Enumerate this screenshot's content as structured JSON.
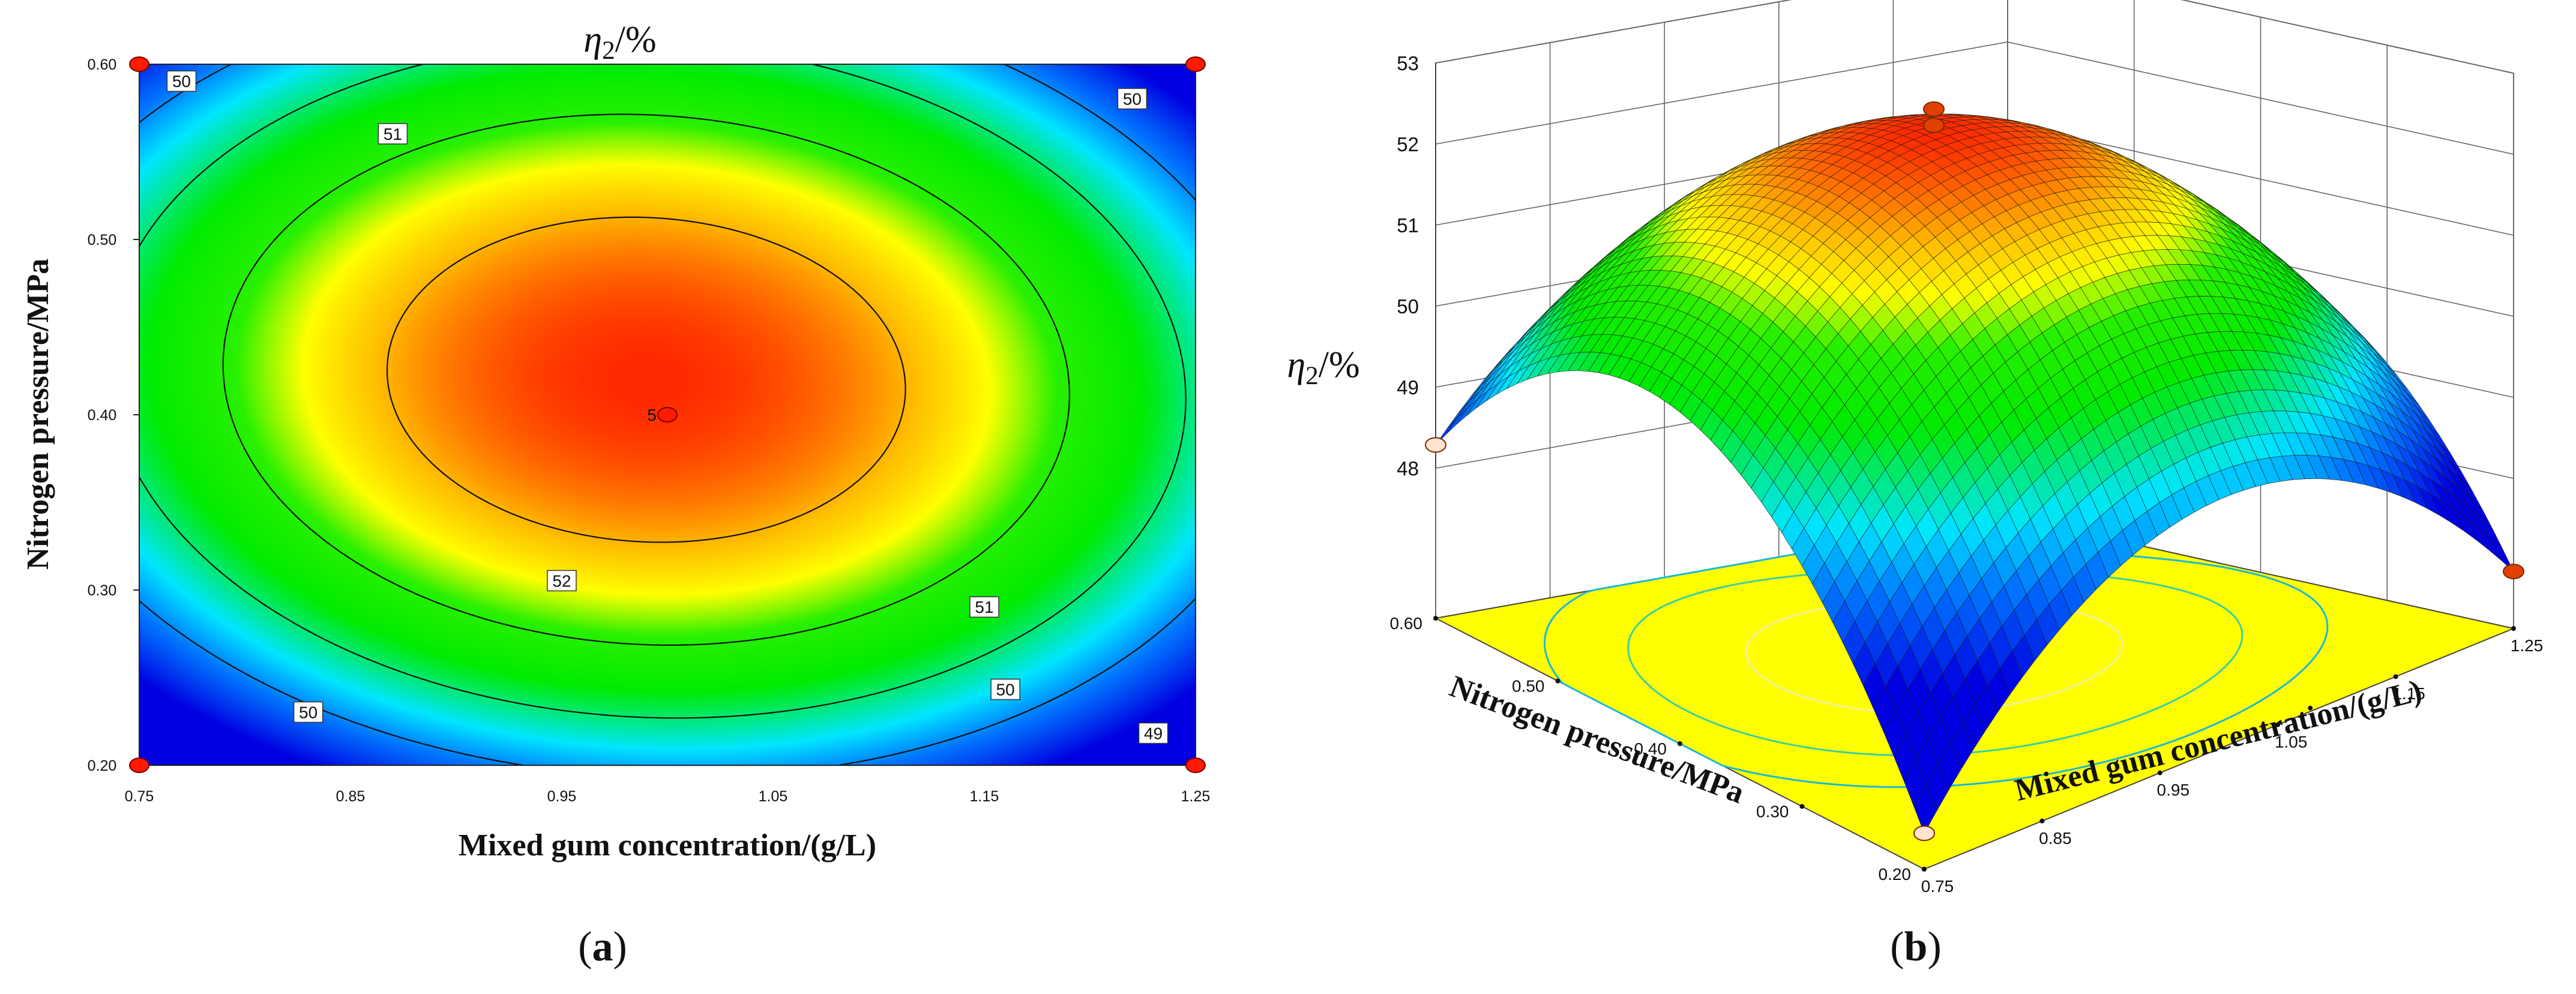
{
  "panel_a": {
    "label": "a"
  },
  "panel_b": {
    "label": "b"
  },
  "colors": {
    "high": "#ff3000",
    "mid_high": "#ffff00",
    "mid": "#00ee00",
    "low": "#00e0ff",
    "lowest": "#0000e0",
    "floor": "#ffff00",
    "design_point": "#ff1a00"
  },
  "chart_data": [
    {
      "type": "heatmap",
      "subtype": "contour",
      "title": "η2/%",
      "xlabel": "Mixed gum concentration/(g/L)",
      "ylabel": "Nitrogen pressure/MPa",
      "xlim": [
        0.75,
        1.25
      ],
      "ylim": [
        0.2,
        0.6
      ],
      "xticks": [
        "0.75",
        "0.85",
        "0.95",
        "1.05",
        "1.15",
        "1.25"
      ],
      "yticks": [
        "0.20",
        "0.30",
        "0.40",
        "0.50",
        "0.60"
      ],
      "surface_peak": {
        "x": 0.99,
        "y": 0.42,
        "z": 52.6
      },
      "contour_levels": [
        49,
        50,
        51,
        52
      ],
      "contour_labels": [
        {
          "text": "50",
          "x": 0.77,
          "y": 0.59
        },
        {
          "text": "51",
          "x": 0.87,
          "y": 0.56
        },
        {
          "text": "50",
          "x": 1.22,
          "y": 0.58
        },
        {
          "text": "52",
          "x": 0.95,
          "y": 0.305
        },
        {
          "text": "51",
          "x": 1.15,
          "y": 0.29
        },
        {
          "text": "50",
          "x": 0.83,
          "y": 0.23
        },
        {
          "text": "50",
          "x": 1.16,
          "y": 0.243
        },
        {
          "text": "49",
          "x": 1.23,
          "y": 0.218
        }
      ],
      "design_points": [
        {
          "x": 0.75,
          "y": 0.6
        },
        {
          "x": 1.25,
          "y": 0.6
        },
        {
          "x": 0.75,
          "y": 0.2
        },
        {
          "x": 1.25,
          "y": 0.2
        },
        {
          "x": 1.0,
          "y": 0.4,
          "label": "5"
        }
      ]
    },
    {
      "type": "surface",
      "zlabel": "η2/%",
      "xlabel": "Mixed gum concentration/(g/L)",
      "ylabel": "Nitrogen pressure/MPa",
      "xlim": [
        0.75,
        1.25
      ],
      "ylim": [
        0.2,
        0.6
      ],
      "zlim": [
        48,
        53
      ],
      "xticks": [
        "0.75",
        "0.85",
        "0.95",
        "1.05",
        "1.15",
        "1.25"
      ],
      "yticks": [
        "0.20",
        "0.30",
        "0.40",
        "0.50",
        "0.60"
      ],
      "zticks": [
        "48",
        "49",
        "50",
        "51",
        "52",
        "53"
      ],
      "corner_values": [
        {
          "x": 0.75,
          "y": 0.6,
          "z": 49.4
        },
        {
          "x": 1.25,
          "y": 0.6,
          "z": 49.3
        },
        {
          "x": 1.25,
          "y": 0.2,
          "z": 48.6
        },
        {
          "x": 0.75,
          "y": 0.2,
          "z": 48.6
        }
      ],
      "peak": {
        "x": 0.99,
        "y": 0.42,
        "z": 52.6
      }
    }
  ]
}
